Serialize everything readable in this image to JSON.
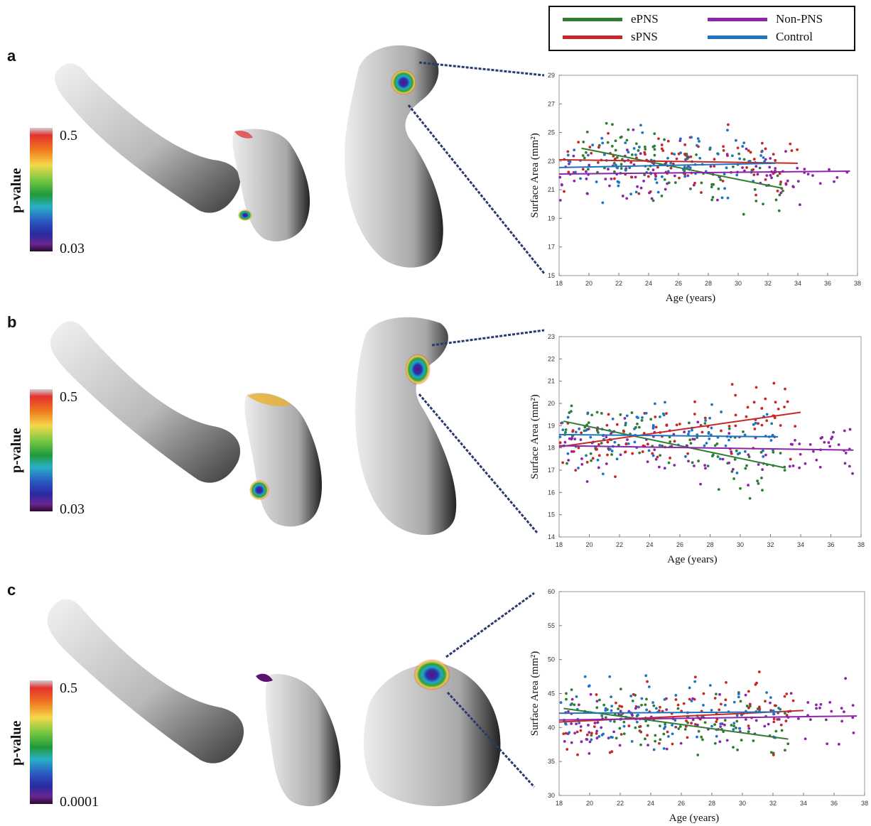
{
  "legend": [
    {
      "name": "ePNS",
      "color": "#2e7d32"
    },
    {
      "name": "sPNS",
      "color": "#c62828"
    },
    {
      "name": "Non-PNS",
      "color": "#8e24aa"
    },
    {
      "name": "Control",
      "color": "#1e74c0"
    }
  ],
  "panels": [
    {
      "letter": "a",
      "colorbar": {
        "title": "p-value",
        "max_label": "0.5",
        "min_label": "0.03"
      }
    },
    {
      "letter": "b",
      "colorbar": {
        "title": "p-value",
        "max_label": "0.5",
        "min_label": "0.03"
      }
    },
    {
      "letter": "c",
      "colorbar": {
        "title": "p-value",
        "max_label": "0.5",
        "min_label": "0.0001"
      }
    }
  ],
  "chart_data": [
    {
      "type": "scatter",
      "xlabel": "Age (years)",
      "ylabel": "Surface Area (mm²)",
      "xlim": [
        18,
        38
      ],
      "ylim": [
        15,
        29
      ],
      "xticks": [
        "18",
        "20",
        "22",
        "24",
        "26",
        "28",
        "30",
        "32",
        "34",
        "36",
        "38"
      ],
      "yticks": [
        "15",
        "17",
        "19",
        "21",
        "23",
        "25",
        "27",
        "29"
      ],
      "trend_lines": [
        {
          "name": "ePNS",
          "x": [
            19.5,
            33
          ],
          "y": [
            23.9,
            21.1
          ]
        },
        {
          "name": "sPNS",
          "x": [
            18,
            34
          ],
          "y": [
            23.1,
            22.85
          ]
        },
        {
          "name": "Non-PNS",
          "x": [
            18,
            37.5
          ],
          "y": [
            22.1,
            22.3
          ]
        },
        {
          "name": "Control",
          "x": [
            18,
            32.5
          ],
          "y": [
            22.55,
            22.85
          ]
        }
      ],
      "grid": false
    },
    {
      "type": "scatter",
      "xlabel": "Age (years)",
      "ylabel": "Surface Area (mm²)",
      "xlim": [
        18,
        38
      ],
      "ylim": [
        14,
        23
      ],
      "xticks": [
        "18",
        "20",
        "22",
        "24",
        "26",
        "28",
        "30",
        "32",
        "34",
        "36",
        "38"
      ],
      "yticks": [
        "14",
        "15",
        "16",
        "17",
        "18",
        "19",
        "20",
        "21",
        "22",
        "23"
      ],
      "trend_lines": [
        {
          "name": "ePNS",
          "x": [
            18.3,
            33
          ],
          "y": [
            19.2,
            17.1
          ]
        },
        {
          "name": "sPNS",
          "x": [
            18,
            34
          ],
          "y": [
            18.05,
            19.6
          ]
        },
        {
          "name": "Non-PNS",
          "x": [
            18,
            37.5
          ],
          "y": [
            18.1,
            17.9
          ]
        },
        {
          "name": "Control",
          "x": [
            18,
            32.5
          ],
          "y": [
            18.6,
            18.5
          ]
        }
      ],
      "grid": false
    },
    {
      "type": "scatter",
      "xlabel": "Age (years)",
      "ylabel": "Surface Area (mm²)",
      "xlim": [
        18,
        38
      ],
      "ylim": [
        30,
        60
      ],
      "xticks": [
        "18",
        "20",
        "22",
        "24",
        "26",
        "28",
        "30",
        "32",
        "34",
        "36",
        "38"
      ],
      "yticks": [
        "30",
        "35",
        "40",
        "45",
        "50",
        "55",
        "60"
      ],
      "trend_lines": [
        {
          "name": "ePNS",
          "x": [
            18.3,
            33
          ],
          "y": [
            42.8,
            38.3
          ]
        },
        {
          "name": "sPNS",
          "x": [
            18,
            34
          ],
          "y": [
            40.8,
            42.5
          ]
        },
        {
          "name": "Non-PNS",
          "x": [
            18,
            37.5
          ],
          "y": [
            41.1,
            41.7
          ]
        },
        {
          "name": "Control",
          "x": [
            18,
            32.5
          ],
          "y": [
            42.1,
            42.3
          ]
        }
      ],
      "grid": false
    }
  ]
}
